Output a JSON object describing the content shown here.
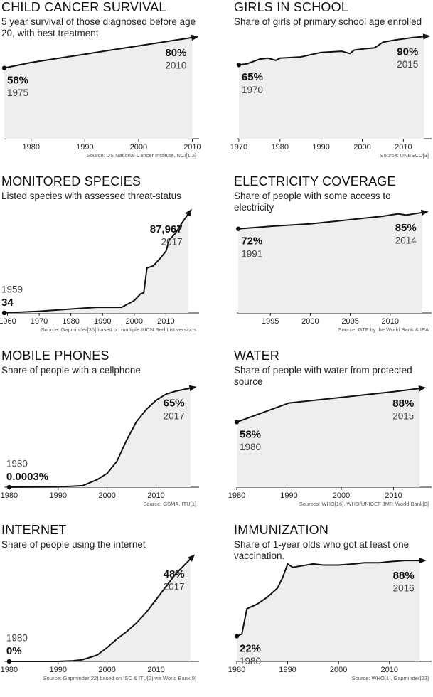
{
  "chart_data": [
    {
      "type": "line",
      "title": "CHILD CANCER SURVIVAL",
      "subtitle": "5 year survival of those diagnosed before age 20, with best treatment",
      "x": [
        1975,
        1980,
        1985,
        1990,
        1995,
        2000,
        2005,
        2010
      ],
      "values": [
        58,
        62,
        65,
        68,
        71,
        74,
        77,
        80
      ],
      "value_labels": [
        "58%",
        null,
        null,
        null,
        null,
        null,
        null,
        "80%"
      ],
      "xlim": [
        1975,
        2011
      ],
      "xticks": [
        1980,
        1990,
        2000,
        2010
      ],
      "ylim": [
        7,
        84
      ],
      "source": "Source: US National Cancer Institute, NCI[1,2]",
      "color": "#111111",
      "fill": "#eeeeee"
    },
    {
      "type": "line",
      "title": "GIRLS IN SCHOOL",
      "subtitle": "Share of girls of primary school age enrolled",
      "x": [
        1970,
        1972,
        1975,
        1977,
        1979,
        1980,
        1985,
        1990,
        1995,
        1997,
        1998,
        2000,
        2003,
        2005,
        2008,
        2010,
        2012,
        2015
      ],
      "values": [
        65,
        66,
        70,
        71,
        69,
        71,
        72,
        76,
        77,
        75,
        78,
        79,
        80,
        85,
        87,
        88,
        89,
        90
      ],
      "value_labels": [
        "65%",
        null,
        null,
        null,
        null,
        null,
        null,
        null,
        null,
        null,
        null,
        null,
        null,
        null,
        null,
        null,
        null,
        "90%"
      ],
      "xlim": [
        1969.5,
        2016.5
      ],
      "xticks": [
        1970,
        1980,
        1990,
        2000,
        2010
      ],
      "ylim": [
        0,
        94
      ],
      "source": "Source: UNESCO[3]",
      "color": "#111111",
      "fill": "#eeeeee"
    },
    {
      "type": "line",
      "title": "MONITORED SPECIES",
      "subtitle": "Listed species with assessed threat-status",
      "x": [
        1959,
        1970,
        1980,
        1988,
        1996,
        2000,
        2002,
        2003,
        2004,
        2006,
        2008,
        2010,
        2011,
        2013,
        2015,
        2017
      ],
      "values": [
        34,
        1500,
        3500,
        5000,
        5000,
        11000,
        17000,
        18000,
        40000,
        42000,
        48000,
        55000,
        65000,
        71000,
        80000,
        87967
      ],
      "value_labels": [
        "34",
        null,
        null,
        null,
        null,
        null,
        null,
        null,
        null,
        null,
        null,
        null,
        null,
        null,
        null,
        "87,967"
      ],
      "xlim": [
        1959,
        2020
      ],
      "xticks": [
        1960,
        1970,
        1980,
        1990,
        2000,
        2010
      ],
      "ylim": [
        0,
        95000
      ],
      "source": "Source: Gapminder[36] based on multiple IUCN Red List versions",
      "color": "#111111",
      "fill": "#eeeeee"
    },
    {
      "type": "line",
      "title": "ELECTRICITY COVERAGE",
      "subtitle": "Share of people with some access to electricity",
      "x": [
        1991,
        1995,
        2000,
        2003,
        2006,
        2009,
        2011,
        2012,
        2014
      ],
      "values": [
        72,
        74,
        76,
        78,
        80,
        82,
        84,
        83,
        85
      ],
      "value_labels": [
        "72%",
        null,
        null,
        null,
        null,
        null,
        null,
        null,
        "85%"
      ],
      "xlim": [
        1990.8,
        2015
      ],
      "xticks": [
        1995,
        2000,
        2005,
        2010
      ],
      "ylim": [
        5,
        90
      ],
      "source": "Source: GTF by the World Bank & IEA",
      "color": "#111111",
      "fill": "#eeeeee"
    },
    {
      "type": "line",
      "title": "MOBILE PHONES",
      "subtitle": "Share of people with a cellphone",
      "x": [
        1980,
        1990,
        1995,
        1998,
        2000,
        2002,
        2004,
        2006,
        2008,
        2010,
        2012,
        2014,
        2017
      ],
      "values": [
        0.0003,
        0.2,
        1,
        5,
        9,
        17,
        31,
        43,
        51,
        57,
        61,
        63,
        65
      ],
      "value_labels": [
        "0.0003%",
        null,
        null,
        null,
        null,
        null,
        null,
        null,
        null,
        null,
        null,
        null,
        "65%"
      ],
      "xlim": [
        1979,
        2018.5
      ],
      "xticks": [
        1980,
        1990,
        2000,
        2010
      ],
      "ylim": [
        0,
        70
      ],
      "source": "Source: GSMA, ITU[1]",
      "color": "#111111",
      "fill": "#eeeeee"
    },
    {
      "type": "line",
      "title": "WATER",
      "subtitle": "Share of people with water from protected source",
      "x": [
        1980,
        1990,
        2000,
        2010,
        2015
      ],
      "values": [
        58,
        75,
        80,
        85,
        88
      ],
      "value_labels": [
        "58%",
        null,
        null,
        null,
        "88%"
      ],
      "xlim": [
        1980,
        2017
      ],
      "xticks": [
        1980,
        1990,
        2000,
        2010
      ],
      "ylim": [
        0,
        95
      ],
      "source": "Sources: WHO[16], WHO/UNICEF JMP, World Bank[8]",
      "color": "#111111",
      "fill": "#eeeeee"
    },
    {
      "type": "line",
      "title": "INTERNET",
      "subtitle": "Share of people using the internet",
      "x": [
        1980,
        1990,
        1993,
        1995,
        1998,
        2000,
        2002,
        2004,
        2006,
        2008,
        2010,
        2012,
        2014,
        2017
      ],
      "values": [
        0,
        0,
        0.3,
        0.8,
        3,
        6.5,
        10.5,
        14,
        18,
        23,
        29,
        35,
        41,
        48
      ],
      "value_labels": [
        "0%",
        null,
        null,
        null,
        null,
        null,
        null,
        null,
        null,
        null,
        null,
        null,
        null,
        "48%"
      ],
      "xlim": [
        1979,
        2018.5
      ],
      "xticks": [
        1980,
        1990,
        2000,
        2010
      ],
      "ylim": [
        0,
        50
      ],
      "source": "Source: Gapminder[22] based on ISC & ITU[2] via World Bank[9]",
      "color": "#111111",
      "fill": "#eeeeee"
    },
    {
      "type": "line",
      "title": "IMMUNIZATION",
      "subtitle": "Share of 1-year olds who got at least one vaccination.",
      "x": [
        1980,
        1981,
        1982,
        1984,
        1986,
        1988,
        1989,
        1990,
        1991,
        1995,
        1997,
        2000,
        2003,
        2005,
        2008,
        2010,
        2013,
        2016
      ],
      "values": [
        22,
        24,
        46,
        50,
        56,
        64,
        73,
        85,
        82,
        85,
        84,
        84,
        85,
        86,
        86,
        87,
        88,
        88
      ],
      "value_labels": [
        "22%",
        null,
        null,
        null,
        null,
        null,
        null,
        null,
        null,
        null,
        null,
        null,
        null,
        null,
        null,
        null,
        null,
        "88%"
      ],
      "xlim": [
        1980,
        2018
      ],
      "xticks": [
        1980,
        1990,
        2000,
        2010
      ],
      "ylim": [
        0,
        93
      ],
      "source": "Source: WHO[1], Gapminder[23]",
      "color": "#111111",
      "fill": "#eeeeee"
    }
  ]
}
